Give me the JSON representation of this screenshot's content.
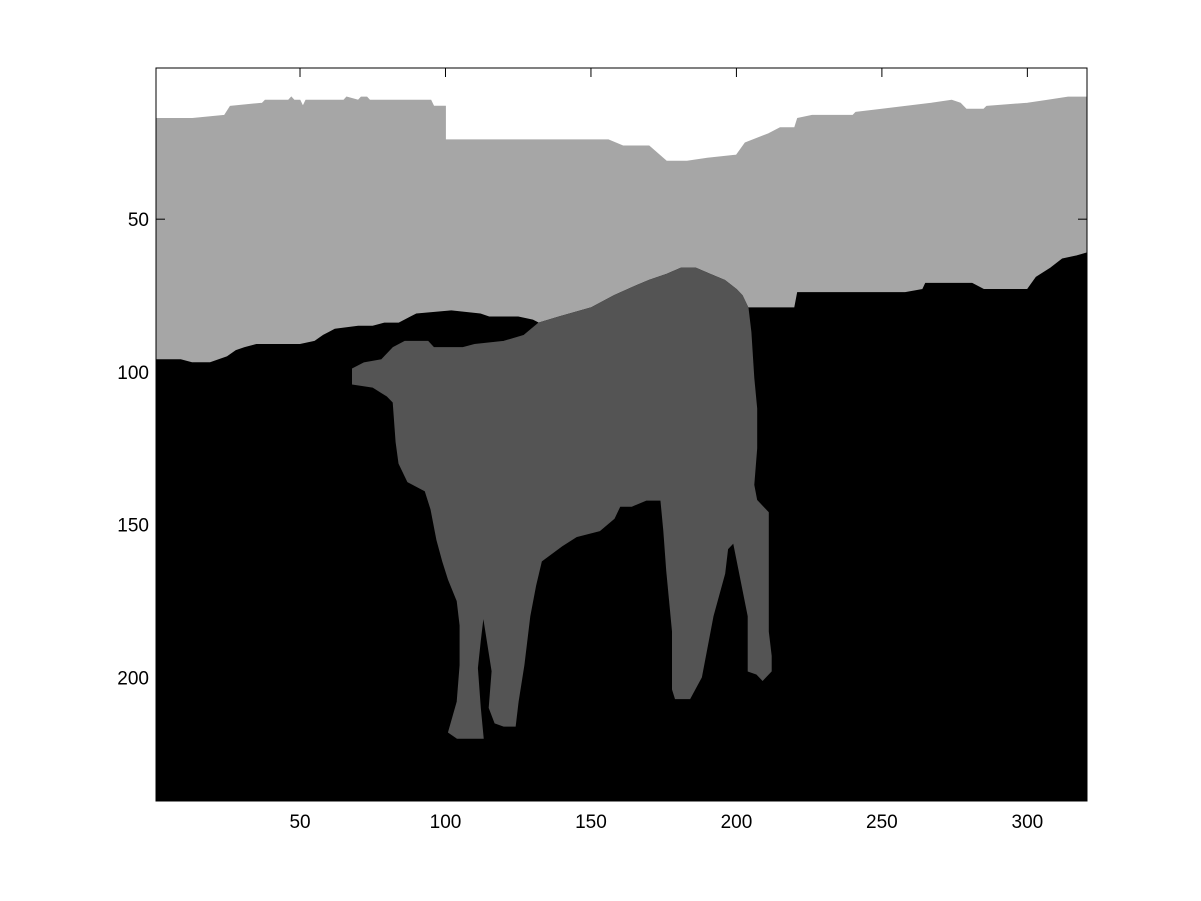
{
  "chart_data": {
    "type": "heatmap",
    "title": "",
    "xlabel": "",
    "ylabel": "",
    "xlim": [
      0.5,
      320.5
    ],
    "ylim": [
      0.5,
      240.5
    ],
    "y_reversed": true,
    "xticks": [
      50,
      100,
      150,
      200,
      250,
      300
    ],
    "xtick_labels": [
      "50",
      "100",
      "150",
      "200",
      "250",
      "300"
    ],
    "yticks": [
      50,
      100,
      150,
      200
    ],
    "ytick_labels": [
      "50",
      "100",
      "150",
      "200"
    ],
    "grid": false,
    "colormap": "gray",
    "segments": [
      {
        "label_value": 3,
        "color": "#ffffff",
        "outline": [
          [
            0.5,
            0.5
          ],
          [
            320.5,
            0.5
          ],
          [
            320.5,
            240.5
          ],
          [
            0.5,
            240.5
          ]
        ]
      },
      {
        "label_value": 2,
        "color": "#a6a6a6",
        "outline": [
          [
            0.5,
            17
          ],
          [
            13,
            17
          ],
          [
            24,
            16
          ],
          [
            26,
            13
          ],
          [
            37,
            12
          ],
          [
            38,
            11
          ],
          [
            46,
            11
          ],
          [
            47,
            10
          ],
          [
            48,
            11
          ],
          [
            50,
            11
          ],
          [
            51,
            13
          ],
          [
            52,
            11
          ],
          [
            65,
            11
          ],
          [
            66,
            10
          ],
          [
            70,
            11
          ],
          [
            71,
            10
          ],
          [
            73,
            10
          ],
          [
            74,
            11
          ],
          [
            84,
            11
          ],
          [
            95,
            11
          ],
          [
            96,
            13
          ],
          [
            100,
            13
          ],
          [
            100,
            24
          ],
          [
            126,
            24
          ],
          [
            156,
            24
          ],
          [
            161,
            26
          ],
          [
            170,
            26
          ],
          [
            176,
            31
          ],
          [
            183,
            31
          ],
          [
            190,
            30
          ],
          [
            200,
            29
          ],
          [
            203,
            25
          ],
          [
            211,
            22
          ],
          [
            215,
            20
          ],
          [
            220,
            20
          ],
          [
            221,
            17
          ],
          [
            226,
            16
          ],
          [
            240,
            16
          ],
          [
            241,
            15
          ],
          [
            250,
            14
          ],
          [
            267,
            12
          ],
          [
            274,
            11
          ],
          [
            277,
            12
          ],
          [
            279,
            14
          ],
          [
            285,
            14
          ],
          [
            286,
            13
          ],
          [
            300,
            12
          ],
          [
            307,
            11
          ],
          [
            314,
            10
          ],
          [
            320.5,
            10
          ],
          [
            320.5,
            240.5
          ],
          [
            0.5,
            240.5
          ]
        ]
      },
      {
        "label_value": 0,
        "color": "#000000",
        "outline": [
          [
            0.5,
            96
          ],
          [
            9,
            96
          ],
          [
            13,
            97
          ],
          [
            19,
            97
          ],
          [
            25,
            95
          ],
          [
            28,
            93
          ],
          [
            31,
            92
          ],
          [
            35,
            91
          ],
          [
            50,
            91
          ],
          [
            55,
            90
          ],
          [
            58,
            88
          ],
          [
            60,
            87
          ],
          [
            62,
            86
          ],
          [
            70,
            85
          ],
          [
            75,
            85
          ],
          [
            79,
            84
          ],
          [
            84,
            84
          ],
          [
            88,
            82
          ],
          [
            90,
            81
          ],
          [
            102,
            80
          ],
          [
            112,
            81
          ],
          [
            115,
            82
          ],
          [
            125,
            82
          ],
          [
            130,
            83
          ],
          [
            132,
            84
          ],
          [
            139,
            82
          ],
          [
            150,
            79
          ],
          [
            158,
            75
          ],
          [
            165,
            72
          ],
          [
            170,
            70
          ],
          [
            176,
            68
          ],
          [
            181,
            66
          ],
          [
            186,
            66
          ],
          [
            191,
            68
          ],
          [
            196,
            70
          ],
          [
            200,
            73
          ],
          [
            202,
            75
          ],
          [
            204,
            79
          ],
          [
            211,
            79
          ],
          [
            220,
            79
          ],
          [
            221,
            74
          ],
          [
            238,
            74
          ],
          [
            258,
            74
          ],
          [
            264,
            73
          ],
          [
            265,
            71
          ],
          [
            281,
            71
          ],
          [
            285,
            73
          ],
          [
            300,
            73
          ],
          [
            303,
            69
          ],
          [
            308,
            66
          ],
          [
            312,
            63
          ],
          [
            317,
            62
          ],
          [
            320.5,
            61
          ],
          [
            320.5,
            240.5
          ],
          [
            0.5,
            240.5
          ]
        ]
      },
      {
        "label_value": 1,
        "color": "#545454",
        "outline": [
          [
            132,
            84
          ],
          [
            139,
            82
          ],
          [
            150,
            79
          ],
          [
            158,
            75
          ],
          [
            165,
            72
          ],
          [
            170,
            70
          ],
          [
            176,
            68
          ],
          [
            181,
            66
          ],
          [
            186,
            66
          ],
          [
            191,
            68
          ],
          [
            196,
            70
          ],
          [
            200,
            73
          ],
          [
            202,
            75
          ],
          [
            204,
            79
          ],
          [
            205,
            87
          ],
          [
            206,
            102
          ],
          [
            207,
            112
          ],
          [
            207,
            125
          ],
          [
            206,
            137
          ],
          [
            207,
            142
          ],
          [
            211,
            146
          ],
          [
            211,
            170
          ],
          [
            211,
            185
          ],
          [
            212,
            193
          ],
          [
            212,
            198
          ],
          [
            209,
            201
          ],
          [
            207,
            199
          ],
          [
            204,
            198
          ],
          [
            204,
            180
          ],
          [
            199,
            156
          ],
          [
            197,
            158
          ],
          [
            196,
            166
          ],
          [
            192,
            180
          ],
          [
            188,
            200
          ],
          [
            184,
            207
          ],
          [
            179,
            207
          ],
          [
            178,
            204
          ],
          [
            178,
            185
          ],
          [
            176,
            165
          ],
          [
            175,
            152
          ],
          [
            174,
            142
          ],
          [
            169,
            142
          ],
          [
            164,
            144
          ],
          [
            160,
            144
          ],
          [
            158,
            148
          ],
          [
            153,
            152
          ],
          [
            145,
            154
          ],
          [
            140,
            157
          ],
          [
            133,
            162
          ],
          [
            131,
            170
          ],
          [
            129,
            180
          ],
          [
            127,
            196
          ],
          [
            125,
            208
          ],
          [
            124,
            216
          ],
          [
            120,
            216
          ],
          [
            117,
            215
          ],
          [
            115,
            210
          ],
          [
            116,
            198
          ],
          [
            114,
            186
          ],
          [
            113,
            180
          ],
          [
            112,
            188
          ],
          [
            111,
            197
          ],
          [
            112,
            210
          ],
          [
            113,
            220
          ],
          [
            104,
            220
          ],
          [
            101,
            218
          ],
          [
            104,
            208
          ],
          [
            105,
            196
          ],
          [
            105,
            183
          ],
          [
            104,
            175
          ],
          [
            101,
            168
          ],
          [
            99,
            162
          ],
          [
            97,
            155
          ],
          [
            95,
            145
          ],
          [
            93,
            139
          ],
          [
            87,
            136
          ],
          [
            84,
            130
          ],
          [
            83,
            123
          ],
          [
            82,
            110
          ],
          [
            80,
            108
          ],
          [
            75,
            105
          ],
          [
            68,
            104
          ],
          [
            68,
            99
          ],
          [
            72,
            97
          ],
          [
            78,
            96
          ],
          [
            82,
            92
          ],
          [
            86,
            90
          ],
          [
            94,
            90
          ],
          [
            96,
            92
          ],
          [
            106,
            92
          ],
          [
            110,
            91
          ],
          [
            120,
            90
          ],
          [
            127,
            88
          ]
        ]
      }
    ]
  }
}
